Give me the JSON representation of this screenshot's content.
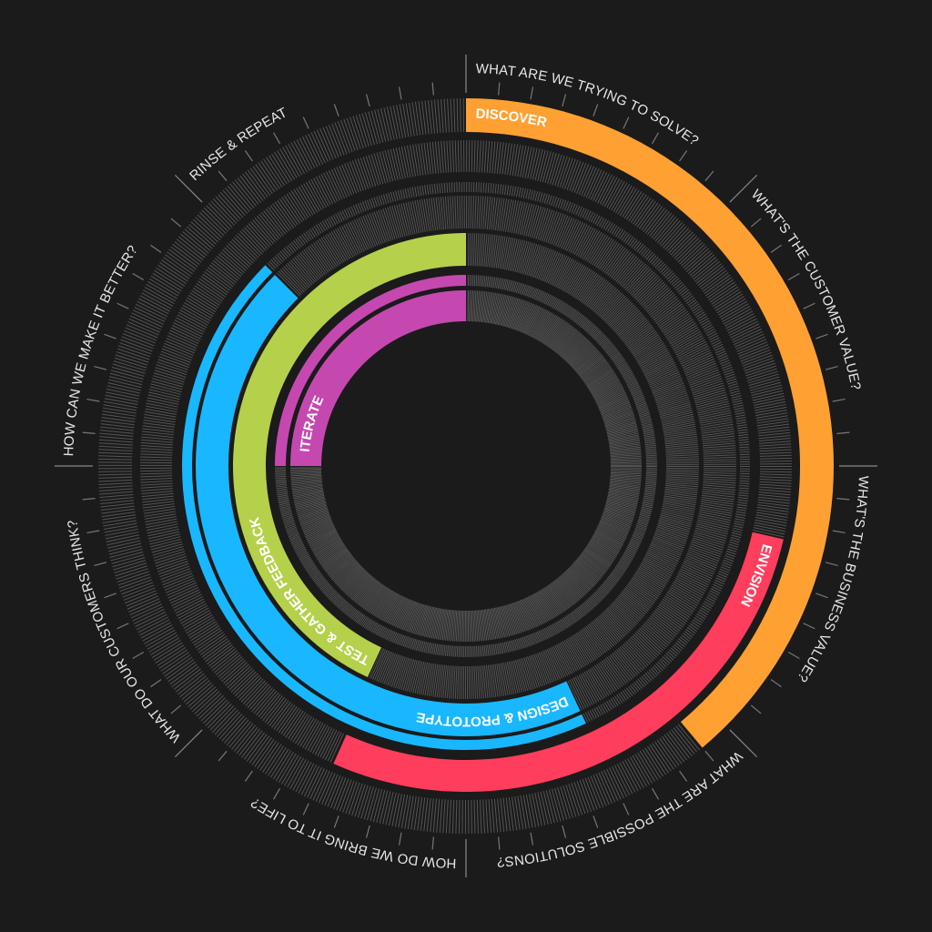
{
  "questions": [
    "WHAT ARE WE TRYING TO SOLVE?",
    "WHAT'S THE CUSTOMER VALUE?",
    "WHAT'S THE BUSINESS VALUE?",
    "WHAT ARE THE POSSIBLE SOLUTIONS?",
    "HOW DO WE BRING IT TO LIFE?",
    "WHAT DO OUR CUSTOMERS THINK?",
    "HOW CAN WE MAKE IT BETTER?",
    "RINSE & REPEAT"
  ],
  "phases": [
    {
      "key": "discover",
      "label": "DISCOVER",
      "color": "#ffa033"
    },
    {
      "key": "envision",
      "label": "ENVISION",
      "color": "#ff3d5c"
    },
    {
      "key": "design",
      "label": "DESIGN & PROTOTYPE",
      "color": "#19b7ff"
    },
    {
      "key": "test",
      "label": "TEST & GATHER FEEDBACK",
      "color": "#b5d04a"
    },
    {
      "key": "iterate",
      "label": "ITERATE",
      "color": "#c548b0"
    }
  ],
  "colors": {
    "background": "#1b1b1b",
    "hatch": "#555555",
    "text": "#e6e6e6"
  }
}
